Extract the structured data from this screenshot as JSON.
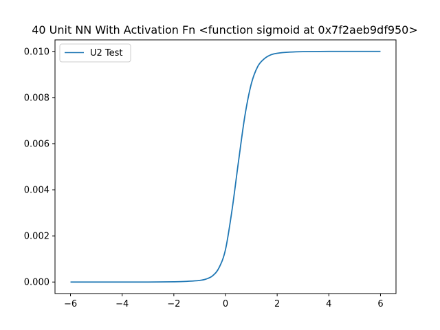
{
  "chart_data": {
    "type": "line",
    "title": "40 Unit NN With Activation Fn <function sigmoid at 0x7f2aeb9df950>",
    "xlabel": "",
    "ylabel": "",
    "xlim": [
      -6.6,
      6.6
    ],
    "ylim": [
      -0.0005,
      0.0105
    ],
    "xticks": [
      -6,
      -4,
      -2,
      0,
      2,
      4,
      6
    ],
    "xtick_labels": [
      "−6",
      "−4",
      "−2",
      "0",
      "2",
      "4",
      "6"
    ],
    "yticks": [
      0.0,
      0.002,
      0.004,
      0.006,
      0.008,
      0.01
    ],
    "ytick_labels": [
      "0.000",
      "0.002",
      "0.004",
      "0.006",
      "0.008",
      "0.010"
    ],
    "grid": false,
    "legend": {
      "placement": "top-left",
      "entries": [
        "U2 Test"
      ]
    },
    "series": [
      {
        "name": "U2 Test",
        "color": "#1f77b4",
        "x": [
          -6,
          -5,
          -4,
          -3,
          -2,
          -1.5,
          -1,
          -0.75,
          -0.5,
          -0.25,
          0,
          0.25,
          0.5,
          0.75,
          1.0,
          1.25,
          1.5,
          1.75,
          2.0,
          2.5,
          3,
          4,
          5,
          6
        ],
        "y": [
          0.0,
          0.0,
          0.0,
          0.0,
          1e-05,
          3e-05,
          7e-05,
          0.00013,
          0.00027,
          0.00062,
          0.00141,
          0.0031,
          0.0052,
          0.0072,
          0.0086,
          0.00935,
          0.00968,
          0.00985,
          0.00992,
          0.00997,
          0.00999,
          0.01,
          0.01,
          0.01
        ]
      }
    ]
  }
}
